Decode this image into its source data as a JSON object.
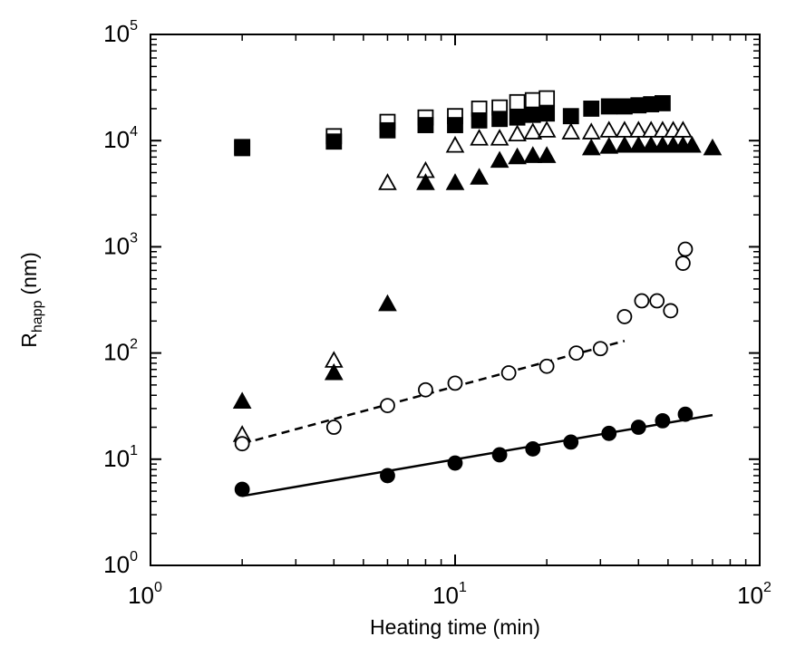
{
  "chart_data": {
    "type": "scatter",
    "title": "",
    "xlabel": "Heating time (min)",
    "ylabel": "R_happ (nm)",
    "ylabel_main": "R",
    "ylabel_sub": "happ",
    "ylabel_unit": "(nm)",
    "x_scale": "log",
    "y_scale": "log",
    "xlim": [
      1,
      100
    ],
    "ylim": [
      1,
      100000
    ],
    "grid": false,
    "legend": "none",
    "x_ticks": [
      {
        "value": 1,
        "base": "10",
        "exp": "0"
      },
      {
        "value": 10,
        "base": "10",
        "exp": "1"
      },
      {
        "value": 100,
        "base": "10",
        "exp": "2"
      }
    ],
    "y_ticks": [
      {
        "value": 1,
        "base": "10",
        "exp": "0"
      },
      {
        "value": 10,
        "base": "10",
        "exp": "1"
      },
      {
        "value": 100,
        "base": "10",
        "exp": "2"
      },
      {
        "value": 1000,
        "base": "10",
        "exp": "3"
      },
      {
        "value": 10000,
        "base": "10",
        "exp": "4"
      },
      {
        "value": 100000,
        "base": "10",
        "exp": "5"
      }
    ],
    "series": [
      {
        "marker": "square-open",
        "x": [
          2,
          4,
          6,
          8,
          10,
          12,
          14,
          16,
          18,
          20
        ],
        "y": [
          8700,
          11000,
          15000,
          16500,
          17000,
          20000,
          20500,
          23000,
          24000,
          25000
        ]
      },
      {
        "marker": "square-filled",
        "x": [
          2,
          4,
          6,
          8,
          10,
          12,
          14,
          16,
          18,
          20,
          24,
          28,
          32,
          36,
          40,
          44,
          48
        ],
        "y": [
          8500,
          9800,
          12500,
          14000,
          14000,
          15500,
          16000,
          16500,
          17500,
          18000,
          17000,
          20000,
          21000,
          21000,
          21500,
          22000,
          22500
        ]
      },
      {
        "marker": "triangle-open",
        "x": [
          2,
          4,
          6,
          8,
          10,
          12,
          14,
          16,
          18,
          20,
          24,
          28,
          32,
          36,
          40,
          44,
          48,
          52,
          56
        ],
        "y": [
          17,
          85,
          4000,
          5200,
          9000,
          10500,
          10500,
          11500,
          12000,
          12500,
          12000,
          12000,
          12500,
          12500,
          12500,
          12500,
          12500,
          12500,
          12500
        ]
      },
      {
        "marker": "triangle-filled",
        "x": [
          2,
          4,
          6,
          8,
          10,
          12,
          14,
          16,
          18,
          20,
          28,
          32,
          36,
          40,
          44,
          48,
          52,
          56,
          60,
          70
        ],
        "y": [
          35,
          65,
          290,
          4000,
          4000,
          4500,
          6500,
          7000,
          7200,
          7200,
          8500,
          8800,
          9000,
          9000,
          9000,
          9000,
          9000,
          9000,
          9000,
          8500
        ]
      },
      {
        "marker": "circle-open",
        "x": [
          2,
          4,
          6,
          8,
          10,
          15,
          20,
          25,
          30,
          36,
          41,
          46,
          51,
          56,
          57
        ],
        "y": [
          14,
          20,
          32,
          45,
          52,
          65,
          75,
          100,
          110,
          220,
          310,
          310,
          250,
          700,
          950
        ]
      },
      {
        "marker": "circle-filled",
        "x": [
          2,
          6,
          10,
          14,
          18,
          24,
          32,
          40,
          48,
          57
        ],
        "y": [
          5.2,
          7,
          9.2,
          11,
          12.5,
          14.5,
          17.5,
          20,
          23,
          26.5
        ]
      }
    ],
    "fits": [
      {
        "style": "dashed",
        "x": [
          2,
          36
        ],
        "y": [
          14,
          130
        ]
      },
      {
        "style": "solid",
        "x": [
          2,
          70
        ],
        "y": [
          4.5,
          26
        ]
      }
    ]
  }
}
